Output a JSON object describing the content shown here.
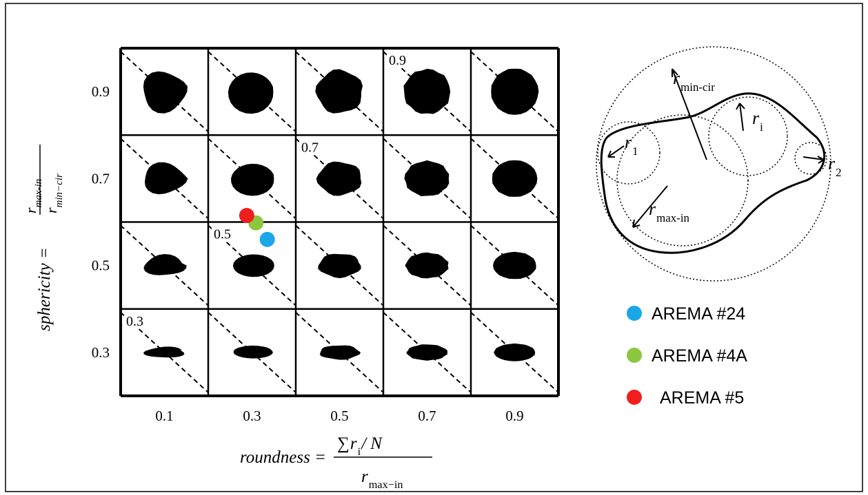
{
  "chart_data": {
    "type": "scatter",
    "xlabel": {
      "lhs": "roundness =",
      "sum": "∑",
      "base": "r",
      "sub": "i",
      "tail": "/ N",
      "den_base": "r",
      "den_sub": "max−in"
    },
    "ylabel": {
      "lhs": "sphericity =",
      "num_base": "r",
      "num_sub": "max-in",
      "den_base": "r",
      "den_sub": "min−cir"
    },
    "xlim": [
      0,
      1.0
    ],
    "ylim": [
      0.2,
      1.0
    ],
    "xticks": [
      0.1,
      0.3,
      0.5,
      0.7,
      0.9
    ],
    "yticks": [
      0.3,
      0.5,
      0.7,
      0.9
    ],
    "diagonal_labels": [
      "0.3",
      "0.5",
      "0.7",
      "0.9"
    ],
    "series": [
      {
        "name": "AREMA #24",
        "color": "#1aa7e8",
        "x": [
          0.335
        ],
        "values": [
          0.56
        ]
      },
      {
        "name": "AREMA #4A",
        "color": "#8cc63f",
        "x": [
          0.309
        ],
        "values": [
          0.598
        ]
      },
      {
        "name": "AREMA #5",
        "color": "#f01e1e",
        "x": [
          0.288
        ],
        "values": [
          0.615
        ]
      }
    ]
  },
  "diagram": {
    "labels": [
      {
        "base": "r",
        "sub": "min-cir"
      },
      {
        "base": "r",
        "sub": "i"
      },
      {
        "base": "r",
        "sub": "1"
      },
      {
        "base": "r",
        "sub": "2"
      },
      {
        "base": "r",
        "sub": "max-in"
      }
    ]
  }
}
